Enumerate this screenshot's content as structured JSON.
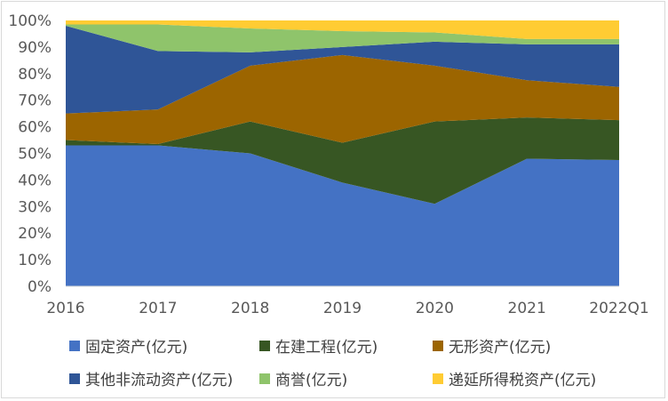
{
  "chart_data": {
    "type": "area",
    "stacked": "percent",
    "categories": [
      "2016",
      "2017",
      "2018",
      "2019",
      "2020",
      "2021",
      "2022Q1"
    ],
    "series": [
      {
        "name": "固定资产(亿元)",
        "color": "#4472C4",
        "values": [
          53,
          53,
          50,
          39,
          31,
          48,
          47.5
        ]
      },
      {
        "name": "在建工程(亿元)",
        "color": "#375623",
        "values": [
          2,
          0.5,
          12,
          15,
          31,
          15.5,
          15
        ]
      },
      {
        "name": "无形资产(亿元)",
        "color": "#9C6500",
        "values": [
          10,
          13,
          21,
          33,
          21,
          14,
          12.5
        ]
      },
      {
        "name": "其他非流动资产(亿元)",
        "color": "#2F5597",
        "values": [
          33,
          22,
          5,
          3,
          9,
          13.5,
          16
        ]
      },
      {
        "name": "商誉(亿元)",
        "color": "#8FC46B",
        "values": [
          0.5,
          10,
          9,
          6,
          3.5,
          2,
          2
        ]
      },
      {
        "name": "递延所得税资产(亿元)",
        "color": "#FFCC33",
        "values": [
          1.5,
          1.5,
          3,
          4,
          4.5,
          7,
          7
        ]
      }
    ],
    "y_ticks": [
      "0%",
      "10%",
      "20%",
      "30%",
      "40%",
      "50%",
      "60%",
      "70%",
      "80%",
      "90%",
      "100%"
    ],
    "ylim": [
      0,
      100
    ],
    "grid": false,
    "legend_position": "bottom"
  }
}
